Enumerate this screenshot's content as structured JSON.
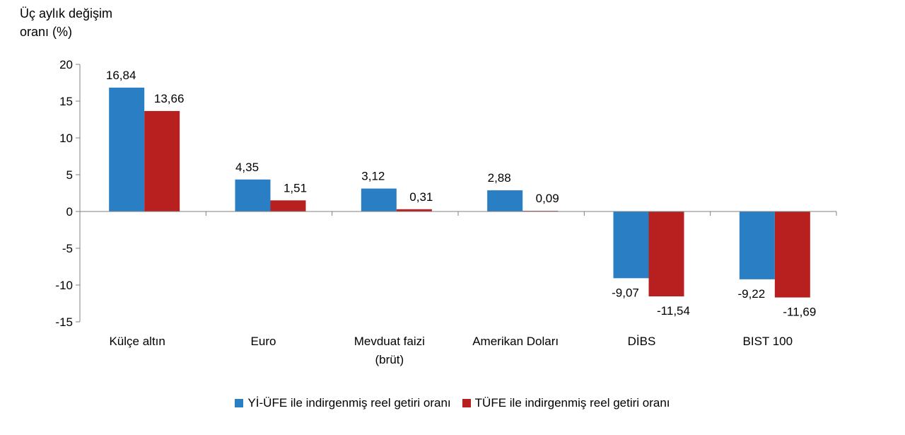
{
  "chart_data": {
    "type": "bar",
    "ylabel": "Üç aylık değişim\noranı (%)",
    "xlabel": "",
    "title": "",
    "ylim": [
      -15,
      20
    ],
    "yticks": [
      20,
      15,
      10,
      5,
      0,
      -5,
      -10,
      -15
    ],
    "grid": false,
    "legend_position": "bottom",
    "categories": [
      "Külçe altın",
      "Euro",
      "Mevduat faizi\n(brüt)",
      "Amerikan Doları",
      "DİBS",
      "BIST 100"
    ],
    "series": [
      {
        "name": "Yİ-ÜFE ile indirgenmiş reel getiri oranı",
        "color": "#2a7fc4",
        "values": [
          16.84,
          4.35,
          3.12,
          2.88,
          -9.07,
          -9.22
        ],
        "labels": [
          "16,84",
          "4,35",
          "3,12",
          "2,88",
          "-9,07",
          "-9,22"
        ]
      },
      {
        "name": "TÜFE ile indirgenmiş reel getiri oranı",
        "color": "#b81f1f",
        "values": [
          13.66,
          1.51,
          0.31,
          0.09,
          -11.54,
          -11.69
        ],
        "labels": [
          "13,66",
          "1,51",
          "0,31",
          "0,09",
          "-11,54",
          "-11,69"
        ]
      }
    ]
  }
}
